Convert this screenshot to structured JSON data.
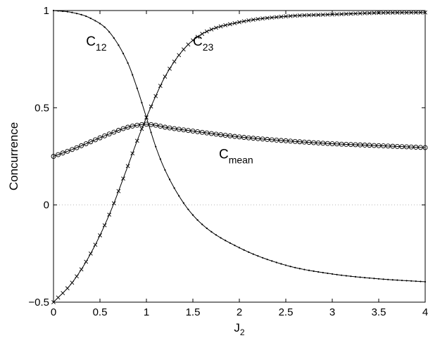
{
  "chart_data": {
    "type": "line",
    "xlabel": "J",
    "xlabel_sub": "2",
    "ylabel": "Concurrence",
    "xlim": [
      0,
      4
    ],
    "ylim": [
      -0.5,
      1
    ],
    "xticks": [
      0,
      0.5,
      1,
      1.5,
      2,
      2.5,
      3,
      3.5,
      4
    ],
    "xtick_labels": [
      "0",
      "0.5",
      "1",
      "1.5",
      "2",
      "2.5",
      "3",
      "3.5",
      "4"
    ],
    "yticks": [
      -0.5,
      0,
      0.5,
      1
    ],
    "ytick_labels": [
      "−0.5",
      "0",
      "0.5",
      "1"
    ],
    "grid": false,
    "reference_line": {
      "y": 0,
      "style": "dotted"
    },
    "series": [
      {
        "marker": "dot",
        "x": [
          0,
          0.2,
          0.4,
          0.6,
          0.8,
          0.9,
          1.0,
          1.1,
          1.2,
          1.4,
          1.6,
          2.0,
          2.5,
          3.0,
          3.5,
          4.0
        ],
        "values": [
          1.0,
          0.99,
          0.96,
          0.89,
          0.73,
          0.6,
          0.45,
          0.3,
          0.18,
          0.01,
          -0.1,
          -0.22,
          -0.31,
          -0.355,
          -0.38,
          -0.395
        ]
      },
      {
        "marker": "x",
        "x": [
          0,
          0.2,
          0.4,
          0.6,
          0.8,
          0.9,
          1.0,
          1.1,
          1.2,
          1.4,
          1.6,
          2.0,
          2.5,
          3.0,
          3.5,
          4.0
        ],
        "values": [
          -0.5,
          -0.4,
          -0.25,
          -0.05,
          0.2,
          0.33,
          0.45,
          0.56,
          0.66,
          0.8,
          0.88,
          0.94,
          0.97,
          0.98,
          0.988,
          0.99
        ]
      },
      {
        "marker": "circle",
        "x": [
          0,
          0.2,
          0.4,
          0.6,
          0.8,
          0.9,
          1.0,
          1.1,
          1.2,
          1.5,
          2.0,
          2.5,
          3.0,
          3.5,
          4.0
        ],
        "values": [
          0.25,
          0.285,
          0.325,
          0.365,
          0.4,
          0.41,
          0.415,
          0.41,
          0.4,
          0.38,
          0.35,
          0.33,
          0.315,
          0.305,
          0.295
        ]
      }
    ],
    "annotations": [
      {
        "text": "C",
        "sub": "12",
        "x": 0.35,
        "y": 0.82
      },
      {
        "text": "C",
        "sub": "23",
        "x": 1.5,
        "y": 0.82
      },
      {
        "text": "C",
        "sub": "mean",
        "x": 1.78,
        "y": 0.24
      }
    ]
  }
}
